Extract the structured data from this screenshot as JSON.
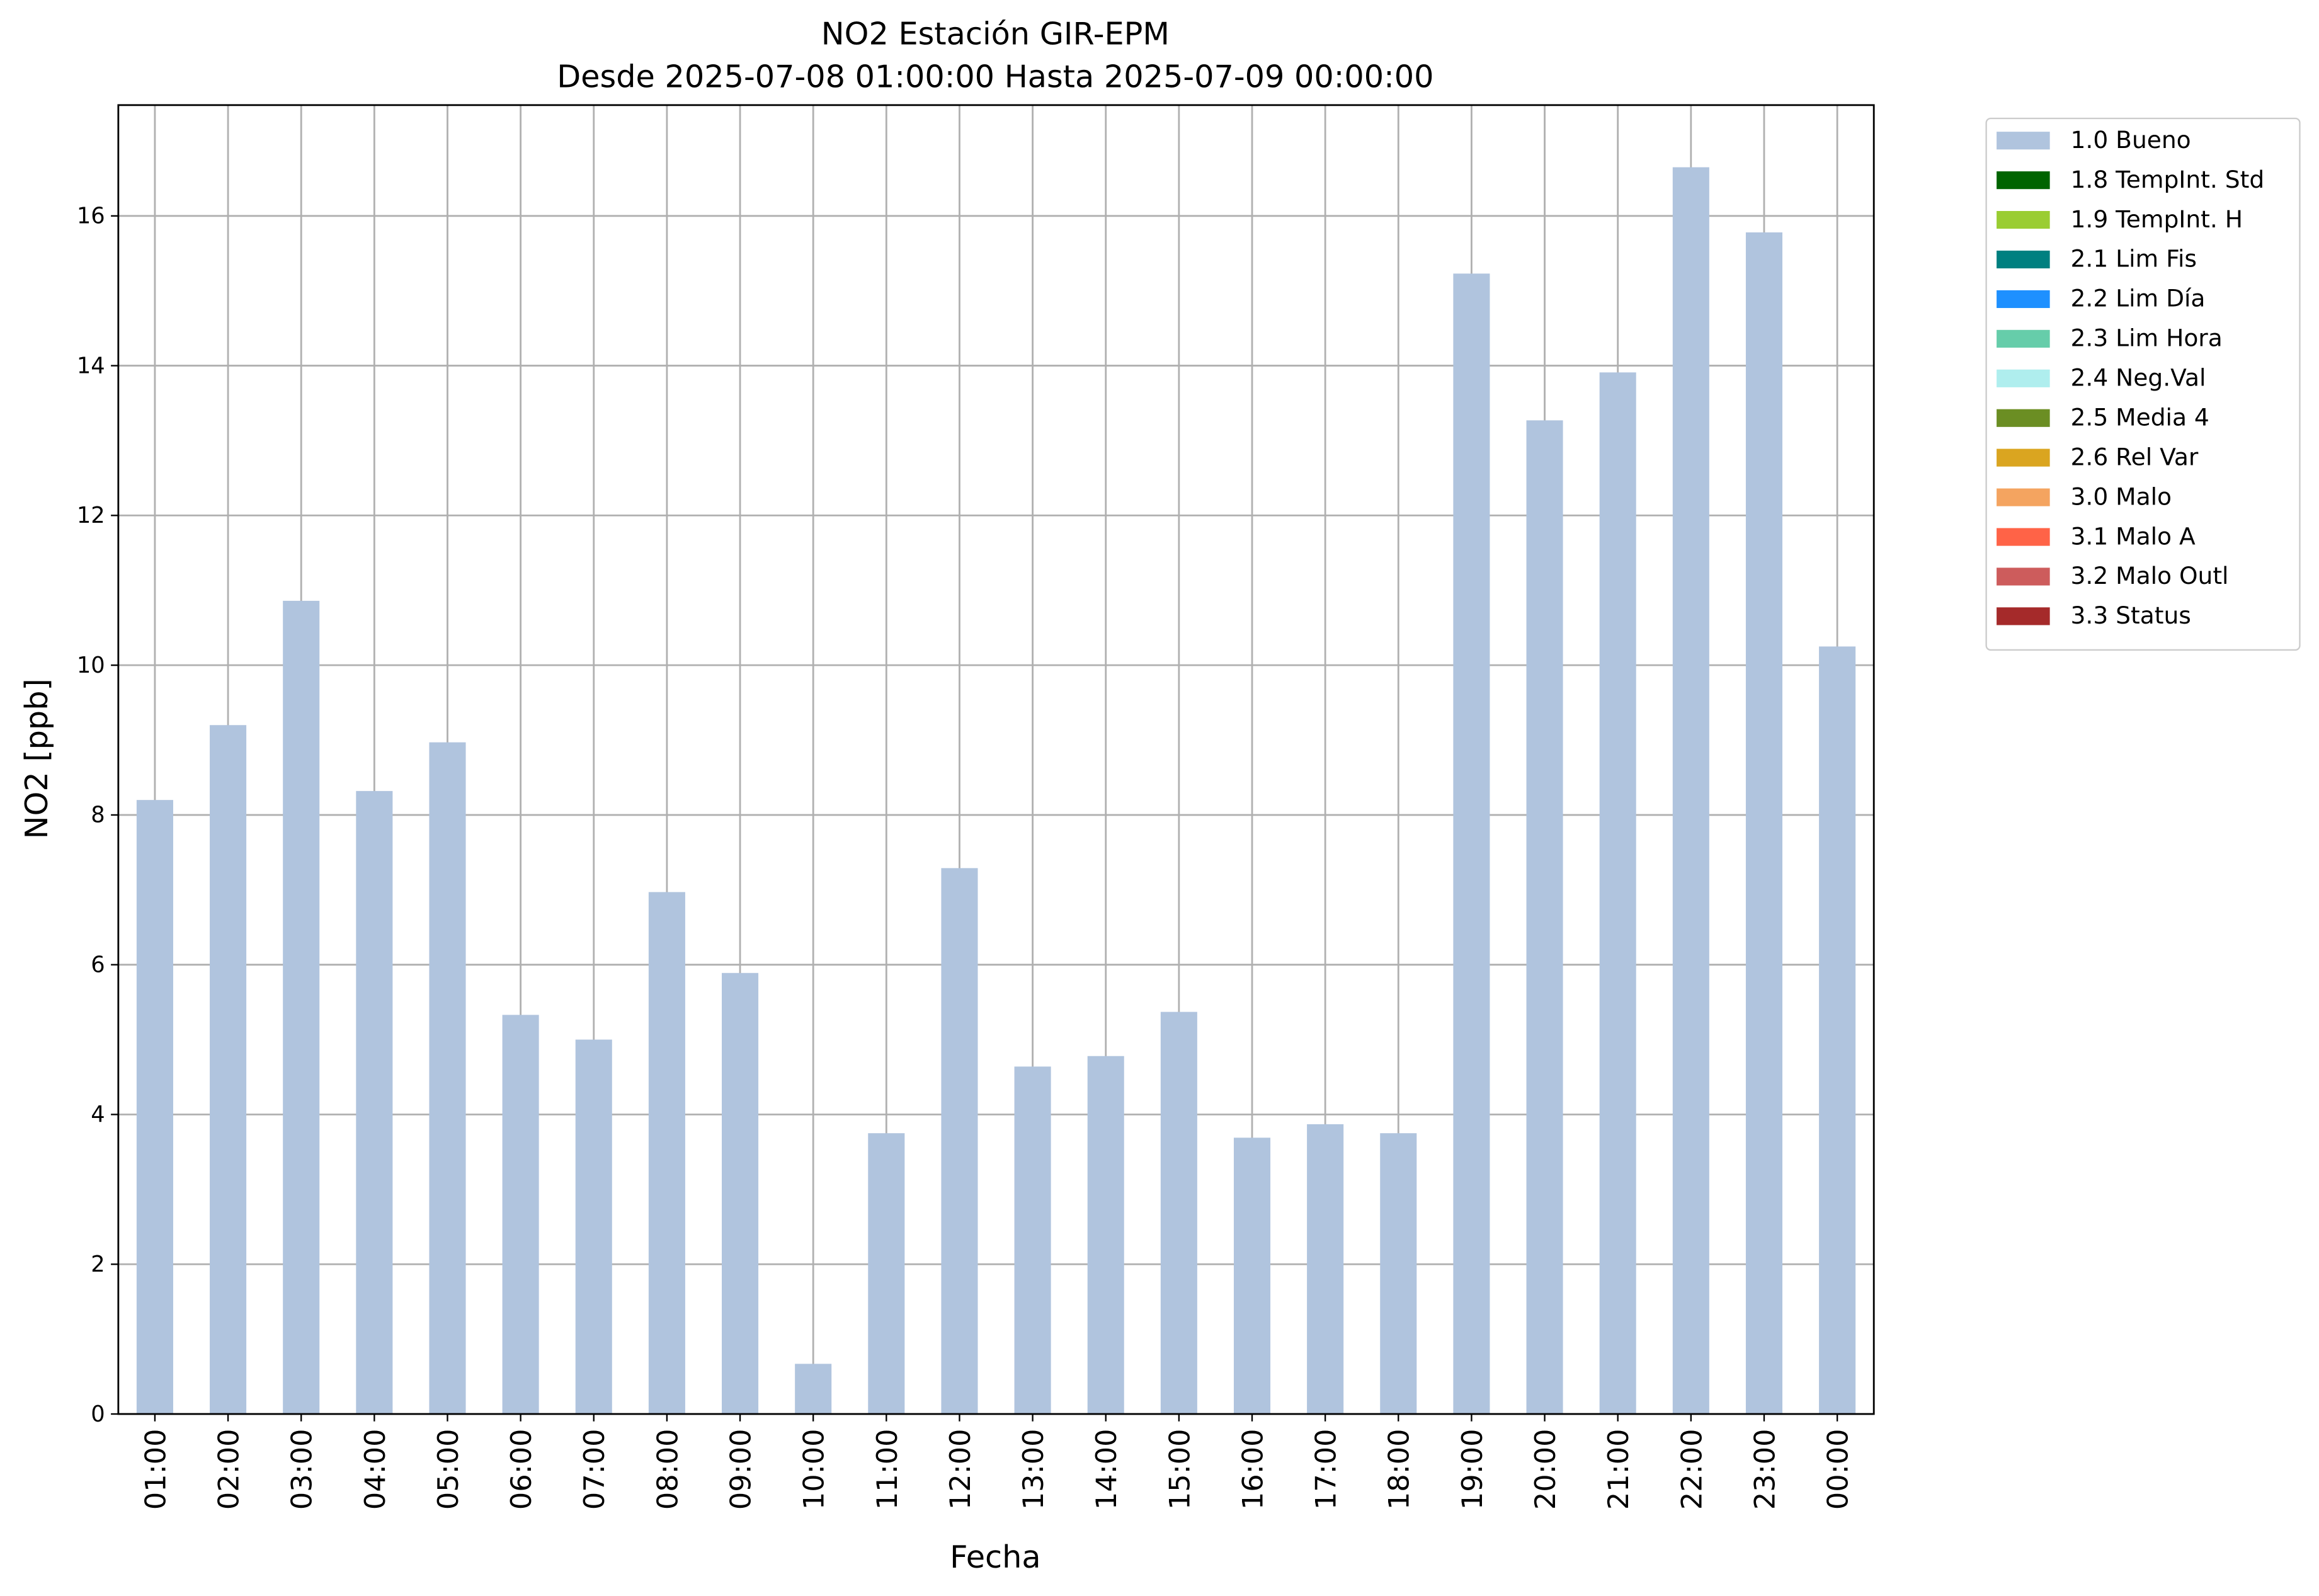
{
  "chart_data": {
    "type": "bar",
    "title": "NO2 Estación GIR-EPM",
    "subtitle": "Desde 2025-07-08 01:00:00 Hasta 2025-07-09 00:00:00",
    "x_label": "Fecha",
    "y_label": "NO2 [ppb]",
    "categories": [
      "01:00",
      "02:00",
      "03:00",
      "04:00",
      "05:00",
      "06:00",
      "07:00",
      "08:00",
      "09:00",
      "10:00",
      "11:00",
      "12:00",
      "13:00",
      "14:00",
      "15:00",
      "16:00",
      "17:00",
      "18:00",
      "19:00",
      "20:00",
      "21:00",
      "22:00",
      "23:00",
      "00:00"
    ],
    "series": [
      {
        "name": "1.0 Bueno",
        "color": "#b0c4de",
        "values": [
          8.2,
          9.2,
          10.86,
          8.32,
          8.97,
          5.33,
          5.0,
          6.97,
          5.89,
          0.67,
          3.75,
          7.29,
          4.64,
          4.78,
          5.37,
          3.69,
          3.87,
          3.75,
          15.23,
          13.27,
          13.91,
          16.65,
          15.78,
          10.25
        ]
      },
      {
        "name": "1.8 TempInt. Std",
        "color": "#006400"
      },
      {
        "name": "1.9 TempInt. H",
        "color": "#9acd32"
      },
      {
        "name": "2.1 Lim Fis",
        "color": "#008080"
      },
      {
        "name": "2.2 Lim Día",
        "color": "#1e90ff"
      },
      {
        "name": "2.3 Lim Hora",
        "color": "#66cdaa"
      },
      {
        "name": "2.4 Neg.Val",
        "color": "#afeeee"
      },
      {
        "name": "2.5 Media 4",
        "color": "#6b8e23"
      },
      {
        "name": "2.6 Rel Var",
        "color": "#daa520"
      },
      {
        "name": "3.0 Malo",
        "color": "#f4a460"
      },
      {
        "name": "3.1 Malo A",
        "color": "#ff6347"
      },
      {
        "name": "3.2 Malo Outl",
        "color": "#cd5c5c"
      },
      {
        "name": "3.3 Status",
        "color": "#a52a2a"
      }
    ],
    "ylim": [
      0,
      17.48
    ],
    "yticks": [
      0,
      2,
      4,
      6,
      8,
      10,
      12,
      14,
      16
    ],
    "grid": true,
    "legend": "outside-upper-right"
  }
}
